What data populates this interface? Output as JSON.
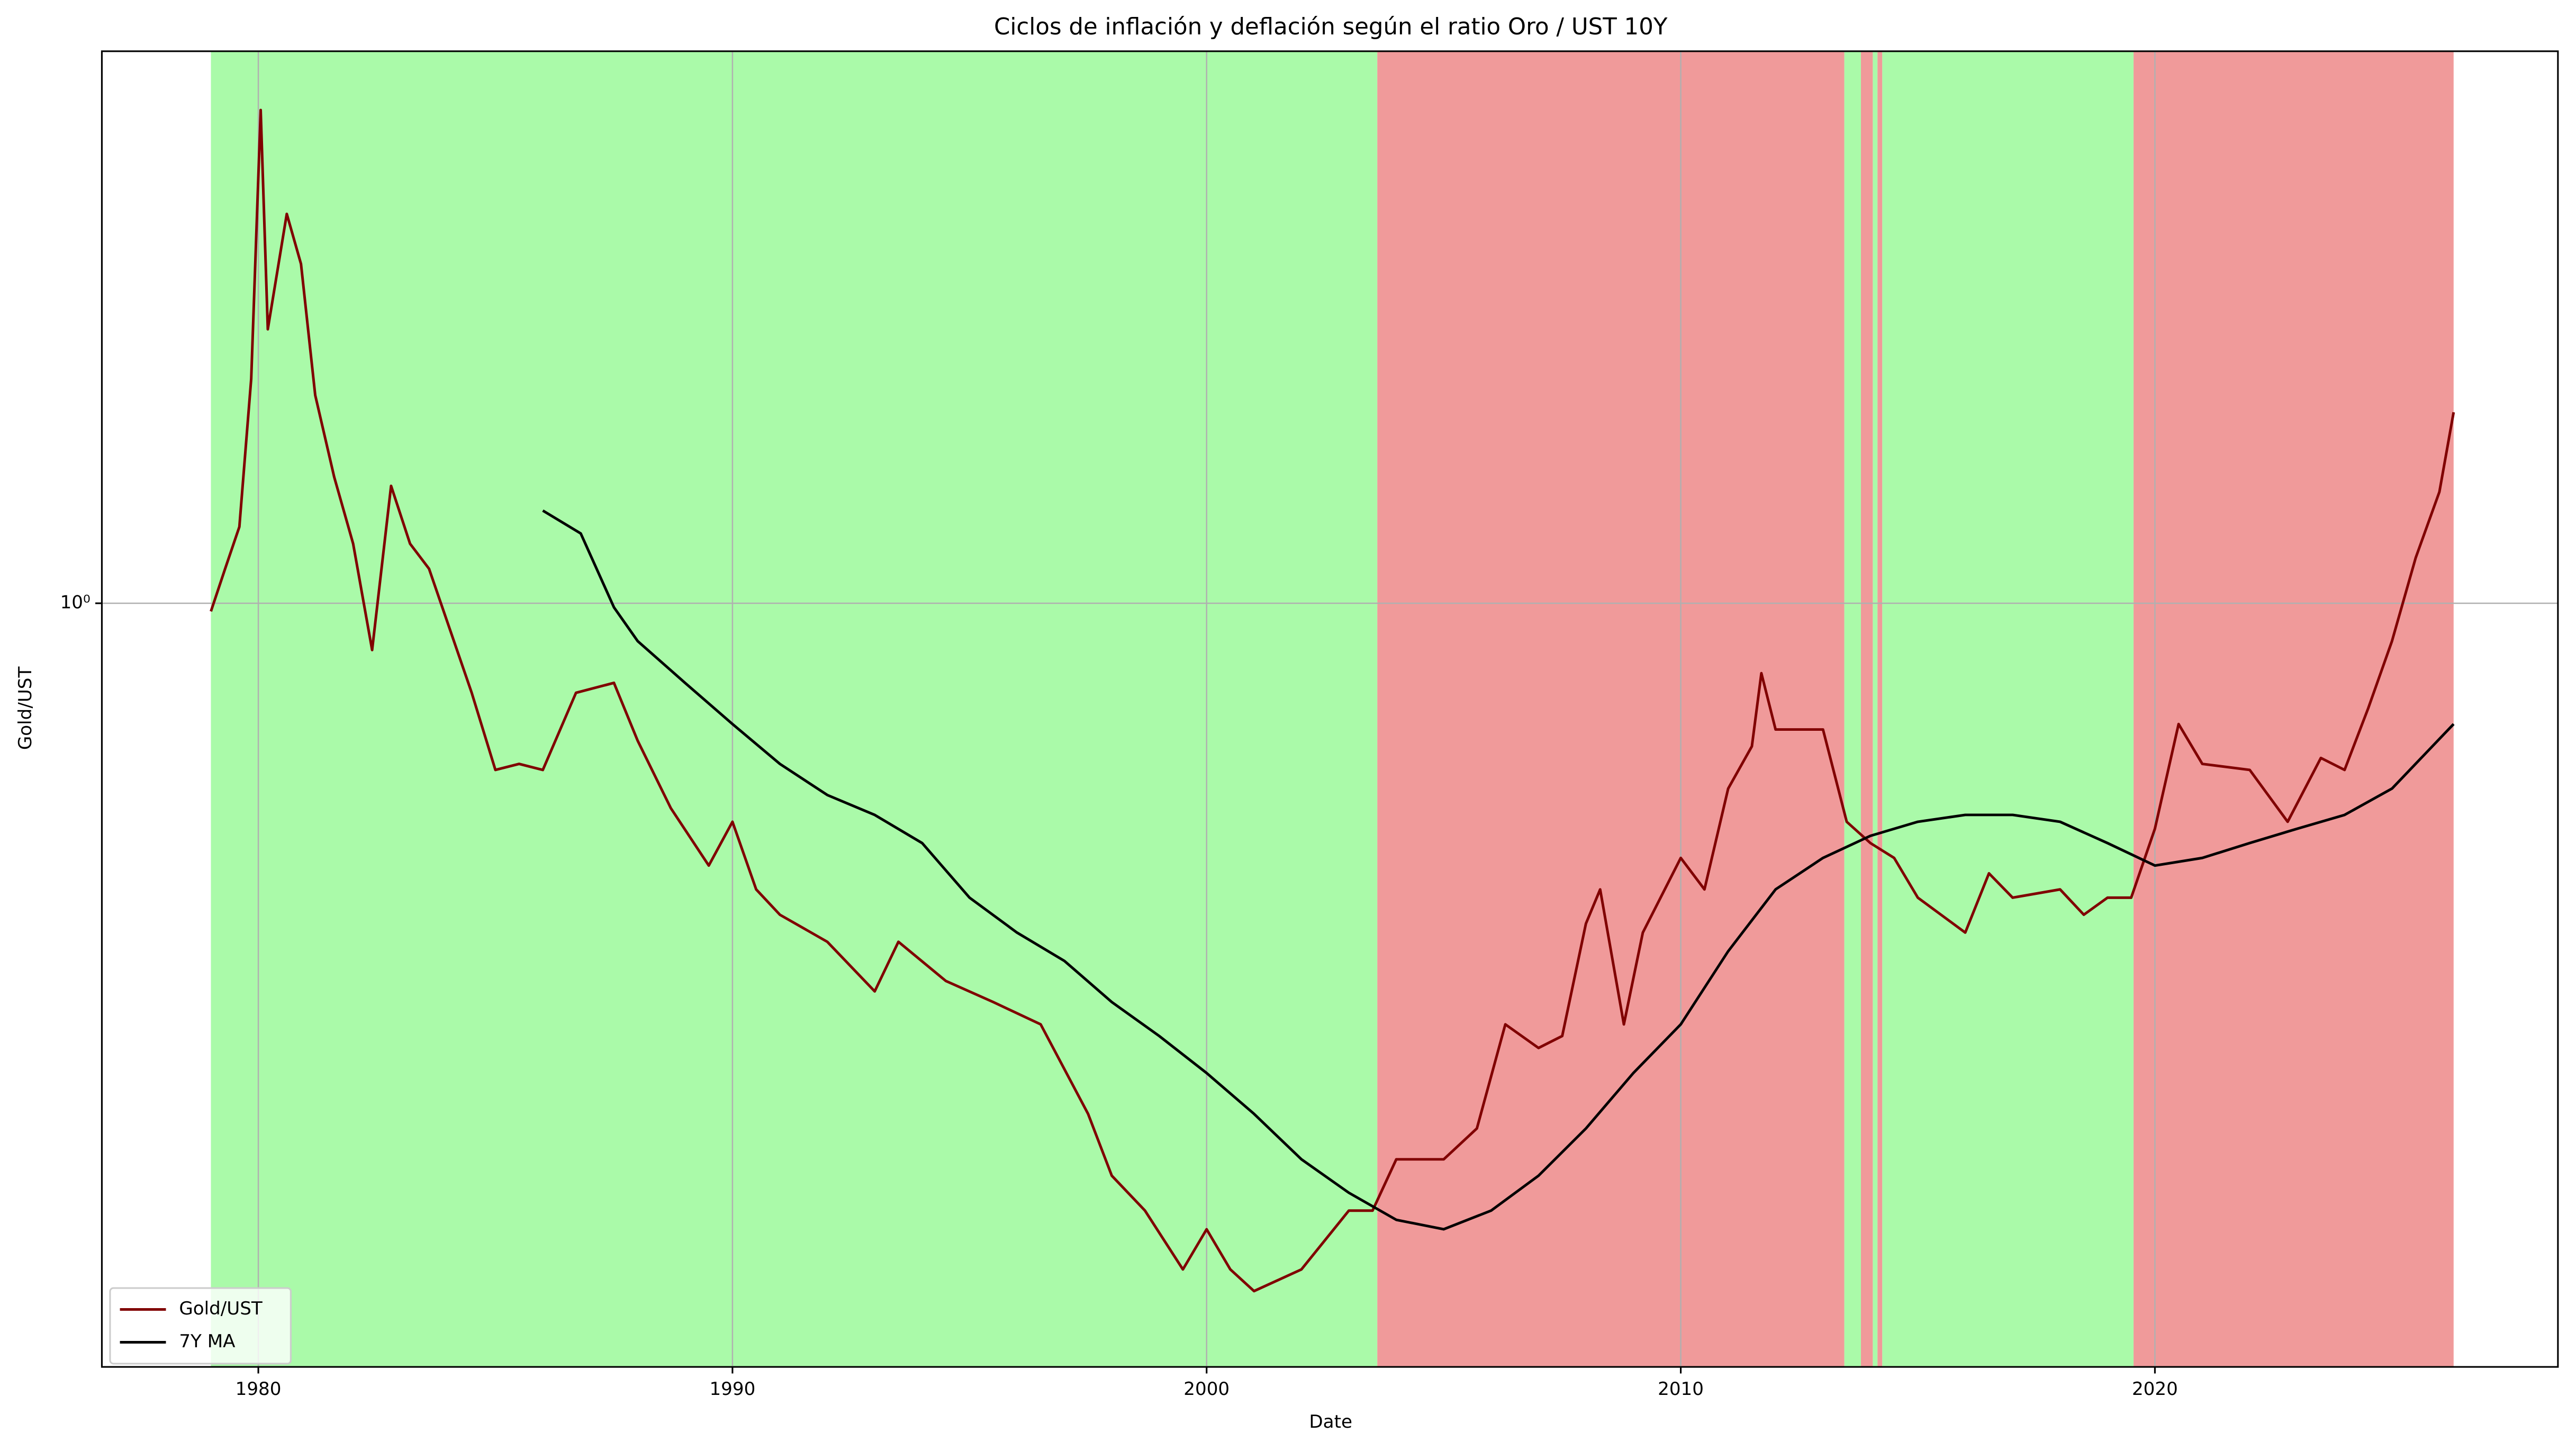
{
  "chart_data": {
    "type": "line",
    "title": "Ciclos de inflación y deflación según el ratio Oro / UST 10Y",
    "x_label": "Date",
    "y_label": "Gold/UST",
    "xlim": [
      1976.7,
      2028.5
    ],
    "xticks": [
      1980,
      1990,
      2000,
      2010,
      2020
    ],
    "ylim": [
      0.149,
      3.96
    ],
    "yticks": [
      {
        "value": 1,
        "label": "10⁰"
      }
    ],
    "log_y": true,
    "grid": true,
    "legend": "lower left",
    "regions": [
      {
        "start": 1979.0,
        "end": 2003.6,
        "color": "#aafaa9"
      },
      {
        "start": 2003.6,
        "end": 2013.45,
        "color": "#f09a9a"
      },
      {
        "start": 2013.45,
        "end": 2013.8,
        "color": "#aafaa9"
      },
      {
        "start": 2013.8,
        "end": 2014.05,
        "color": "#f09a9a"
      },
      {
        "start": 2014.05,
        "end": 2014.15,
        "color": "#aafaa9"
      },
      {
        "start": 2014.15,
        "end": 2014.25,
        "color": "#f09a9a"
      },
      {
        "start": 2014.25,
        "end": 2019.55,
        "color": "#aafaa9"
      },
      {
        "start": 2019.55,
        "end": 2026.3,
        "color": "#f09a9a"
      }
    ],
    "series": [
      {
        "name": "Gold/UST",
        "color": "#800000",
        "x": [
          1979.0,
          1979.3,
          1979.6,
          1979.85,
          1980.05,
          1980.2,
          1980.6,
          1980.9,
          1981.2,
          1981.6,
          1982.0,
          1982.4,
          1982.8,
          1983.2,
          1983.6,
          1984.0,
          1984.5,
          1985.0,
          1985.5,
          1986.0,
          1986.7,
          1987.5,
          1988.0,
          1988.7,
          1989.5,
          1990.0,
          1990.5,
          1991.0,
          1992.0,
          1993.0,
          1993.5,
          1994.5,
          1995.5,
          1996.5,
          1997.5,
          1998.0,
          1998.7,
          1999.5,
          2000.0,
          2000.5,
          2001.0,
          2002.0,
          2003.0,
          2003.5,
          2004.0,
          2005.0,
          2005.7,
          2006.3,
          2007.0,
          2007.5,
          2008.0,
          2008.3,
          2008.8,
          2009.2,
          2010.0,
          2010.5,
          2011.0,
          2011.5,
          2011.7,
          2012.0,
          2012.5,
          2013.0,
          2013.5,
          2014.0,
          2014.5,
          2015.0,
          2016.0,
          2016.5,
          2017.0,
          2018.0,
          2018.5,
          2019.0,
          2019.5,
          2020.0,
          2020.5,
          2021.0,
          2022.0,
          2022.8,
          2023.5,
          2024.0,
          2024.5,
          2025.0,
          2025.5,
          2026.0,
          2026.3
        ],
        "values": [
          0.98,
          1.09,
          1.21,
          1.75,
          3.42,
          1.98,
          2.64,
          2.33,
          1.68,
          1.37,
          1.16,
          0.89,
          1.34,
          1.16,
          1.09,
          0.95,
          0.8,
          0.66,
          0.67,
          0.66,
          0.8,
          0.82,
          0.71,
          0.6,
          0.52,
          0.58,
          0.49,
          0.46,
          0.43,
          0.38,
          0.43,
          0.39,
          0.37,
          0.35,
          0.28,
          0.24,
          0.22,
          0.19,
          0.21,
          0.19,
          0.18,
          0.19,
          0.22,
          0.22,
          0.25,
          0.25,
          0.27,
          0.35,
          0.33,
          0.34,
          0.45,
          0.49,
          0.35,
          0.44,
          0.53,
          0.49,
          0.63,
          0.7,
          0.84,
          0.73,
          0.73,
          0.73,
          0.58,
          0.55,
          0.53,
          0.48,
          0.44,
          0.51,
          0.48,
          0.49,
          0.46,
          0.48,
          0.48,
          0.57,
          0.74,
          0.67,
          0.66,
          0.58,
          0.68,
          0.66,
          0.77,
          0.91,
          1.12,
          1.32,
          1.61
        ]
      },
      {
        "name": "7Y MA",
        "color": "#000000",
        "x": [
          1986.0,
          1986.8,
          1987.5,
          1988.0,
          1989.0,
          1990.0,
          1991.0,
          1992.0,
          1993.0,
          1994.0,
          1995.0,
          1996.0,
          1997.0,
          1998.0,
          1999.0,
          2000.0,
          2001.0,
          2002.0,
          2003.0,
          2004.0,
          2005.0,
          2006.0,
          2007.0,
          2008.0,
          2009.0,
          2010.0,
          2011.0,
          2012.0,
          2013.0,
          2014.0,
          2015.0,
          2016.0,
          2017.0,
          2018.0,
          2019.0,
          2020.0,
          2021.0,
          2022.0,
          2023.0,
          2024.0,
          2025.0,
          2026.3
        ],
        "values": [
          1.26,
          1.19,
          0.99,
          0.91,
          0.82,
          0.74,
          0.67,
          0.62,
          0.59,
          0.55,
          0.48,
          0.44,
          0.41,
          0.37,
          0.34,
          0.31,
          0.28,
          0.25,
          0.23,
          0.215,
          0.21,
          0.22,
          0.24,
          0.27,
          0.31,
          0.35,
          0.42,
          0.49,
          0.53,
          0.56,
          0.58,
          0.59,
          0.59,
          0.58,
          0.55,
          0.52,
          0.53,
          0.55,
          0.57,
          0.59,
          0.63,
          0.74
        ]
      }
    ]
  }
}
